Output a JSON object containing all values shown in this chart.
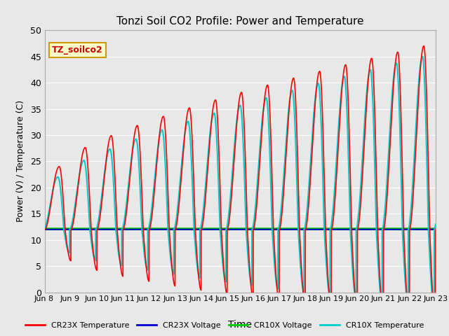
{
  "title": "Tonzi Soil CO2 Profile: Power and Temperature",
  "xlabel": "Time",
  "ylabel": "Power (V) / Temperature (C)",
  "ylim": [
    0,
    50
  ],
  "yticks": [
    0,
    5,
    10,
    15,
    20,
    25,
    30,
    35,
    40,
    45,
    50
  ],
  "xtick_labels": [
    "Jun 8 ",
    "Jun 9 ",
    "Jun 10",
    "Jun 11",
    "Jun 12",
    "Jun 13",
    "Jun 14",
    "Jun 15",
    "Jun 16",
    "Jun 17",
    "Jun 18",
    "Jun 19",
    "Jun 20",
    "Jun 21",
    "Jun 22",
    "Jun 23"
  ],
  "figure_bg": "#e8e8e8",
  "plot_bg": "#e8e8e8",
  "grid_color": "#ffffff",
  "cr23x_temp_color": "#ff0000",
  "cr23x_volt_color": "#0000cc",
  "cr10x_volt_color": "#00cc00",
  "cr10x_temp_color": "#00cccc",
  "annotation_text": "TZ_soilco2",
  "annotation_bg": "#ffffcc",
  "annotation_border": "#cc9900",
  "legend_labels": [
    "CR23X Temperature",
    "CR23X Voltage",
    "CR10X Voltage",
    "CR10X Temperature"
  ],
  "legend_colors": [
    "#ff0000",
    "#0000cc",
    "#00cc00",
    "#00cccc"
  ],
  "n_days": 15,
  "base_temp": 12.0,
  "cr23x_volt_val": 12.0,
  "cr10x_volt_val": 12.1
}
